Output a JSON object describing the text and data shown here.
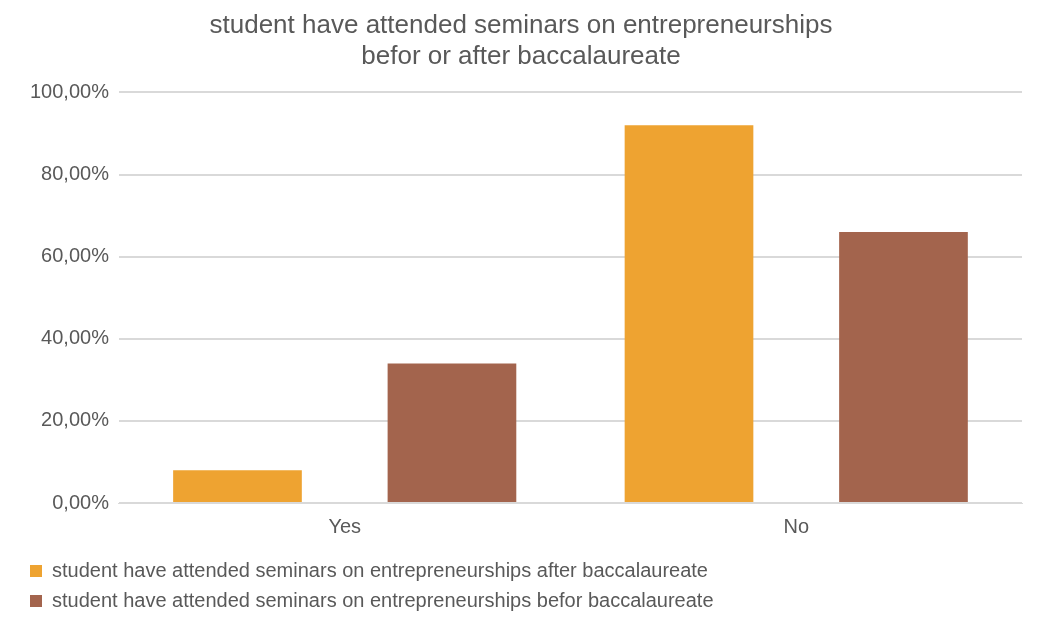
{
  "chart_data": {
    "type": "bar",
    "title": "student have attended seminars on entrepreneurships\nbefor or after baccalaureate",
    "categories": [
      "Yes",
      "No"
    ],
    "series": [
      {
        "name": "student have attended seminars on entrepreneurships after baccalaureate",
        "color": "#eea331",
        "values": [
          8,
          92
        ]
      },
      {
        "name": "student have attended seminars on entrepreneurships befor baccalaureate",
        "color": "#a3644d",
        "values": [
          34,
          66
        ]
      }
    ],
    "ylim": [
      0,
      100
    ],
    "yticks": [
      {
        "value": 0,
        "label": "0,00%"
      },
      {
        "value": 20,
        "label": "20,00%"
      },
      {
        "value": 40,
        "label": "40,00%"
      },
      {
        "value": 60,
        "label": "60,00%"
      },
      {
        "value": 80,
        "label": "80,00%"
      },
      {
        "value": 100,
        "label": "100,00%"
      }
    ],
    "grid": "y",
    "legend": "bottom"
  }
}
